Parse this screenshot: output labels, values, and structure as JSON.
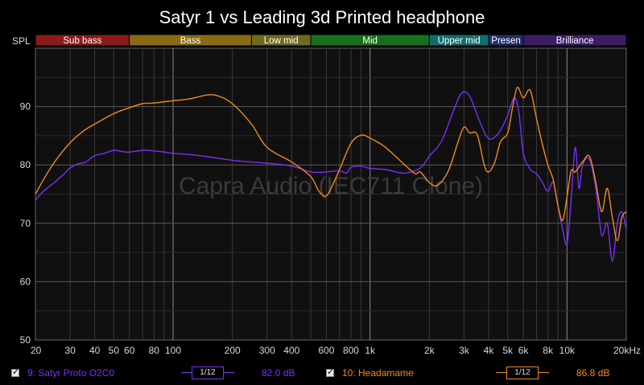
{
  "title": "Satyr 1 vs Leading 3d Printed headphone",
  "watermark": "Capra Audio (IEC711 Clone)",
  "ylabel": "SPL",
  "chart_data": {
    "type": "line",
    "title": "Satyr 1 vs Leading 3d Printed headphone",
    "ylabel": "SPL",
    "xscale": "log",
    "xlim": [
      20,
      20000
    ],
    "ylim": [
      50,
      100
    ],
    "x_ticks": [
      {
        "v": 20,
        "t": "20"
      },
      {
        "v": 30,
        "t": "30"
      },
      {
        "v": 40,
        "t": "40"
      },
      {
        "v": 50,
        "t": "50"
      },
      {
        "v": 60,
        "t": "60"
      },
      {
        "v": 80,
        "t": "80"
      },
      {
        "v": 100,
        "t": "100"
      },
      {
        "v": 200,
        "t": "200"
      },
      {
        "v": 300,
        "t": "300"
      },
      {
        "v": 400,
        "t": "400"
      },
      {
        "v": 600,
        "t": "600"
      },
      {
        "v": 800,
        "t": "800"
      },
      {
        "v": 1000,
        "t": "1k"
      },
      {
        "v": 2000,
        "t": "2k"
      },
      {
        "v": 3000,
        "t": "3k"
      },
      {
        "v": 4000,
        "t": "4k"
      },
      {
        "v": 5000,
        "t": "5k"
      },
      {
        "v": 6000,
        "t": "6k"
      },
      {
        "v": 8000,
        "t": "8k"
      },
      {
        "v": 10000,
        "t": "10k"
      },
      {
        "v": 20000,
        "t": "20kHz"
      }
    ],
    "y_ticks": [
      50,
      60,
      70,
      80,
      90
    ],
    "grid": true,
    "bands": [
      {
        "name": "Sub bass",
        "from": 20,
        "to": 60,
        "color": "#8b1a1a"
      },
      {
        "name": "Bass",
        "from": 60,
        "to": 250,
        "color": "#8b6a14"
      },
      {
        "name": "Low mid",
        "from": 250,
        "to": 500,
        "color": "#6f6a1e"
      },
      {
        "name": "Mid",
        "from": 500,
        "to": 2000,
        "color": "#17701e"
      },
      {
        "name": "Upper mid",
        "from": 2000,
        "to": 4000,
        "color": "#136d6d"
      },
      {
        "name": "Presen",
        "from": 4000,
        "to": 6000,
        "color": "#20306a"
      },
      {
        "name": "Brilliance",
        "from": 6000,
        "to": 20000,
        "color": "#3d1e66"
      }
    ],
    "series": [
      {
        "name": "9: Satyr Proto O2C0",
        "color": "#7b2ff7",
        "x": [
          20,
          22,
          25,
          28,
          30,
          33,
          36,
          40,
          45,
          50,
          55,
          60,
          70,
          80,
          90,
          100,
          120,
          150,
          200,
          250,
          300,
          400,
          500,
          600,
          700,
          760,
          800,
          900,
          1000,
          1200,
          1500,
          1800,
          2000,
          2300,
          2600,
          2900,
          3200,
          3600,
          4000,
          4500,
          5000,
          5400,
          5700,
          6000,
          6500,
          7000,
          7500,
          8000,
          8500,
          9000,
          9500,
          10000,
          10500,
          11000,
          11500,
          12000,
          13000,
          14000,
          15000,
          16000,
          17000,
          18000,
          19000,
          20000
        ],
        "y": [
          74,
          75.5,
          77,
          78.5,
          79.5,
          80.2,
          80.5,
          81.6,
          82,
          82.5,
          82.3,
          82.2,
          82.5,
          82.4,
          82.2,
          82,
          81.8,
          81.4,
          80.8,
          80.5,
          80.3,
          79.8,
          78.8,
          78.8,
          79,
          78.6,
          79.6,
          79.8,
          79.4,
          79.2,
          78.6,
          79.5,
          81.5,
          84,
          88.5,
          92.2,
          91.8,
          87.5,
          84.5,
          85.5,
          88.5,
          91.5,
          89,
          82,
          79.3,
          78.5,
          77,
          75.5,
          77,
          73,
          69,
          66.5,
          74,
          83,
          76,
          80,
          81,
          76,
          68,
          70,
          63.5,
          70,
          72,
          69
        ]
      },
      {
        "name": "10: Headamame",
        "color": "#f08a1e",
        "x": [
          20,
          22,
          25,
          30,
          35,
          40,
          50,
          60,
          70,
          80,
          100,
          120,
          150,
          170,
          200,
          250,
          300,
          400,
          500,
          550,
          600,
          650,
          700,
          800,
          900,
          1000,
          1200,
          1500,
          1700,
          1800,
          2000,
          2200,
          2500,
          2800,
          3000,
          3200,
          3500,
          3800,
          4000,
          4300,
          4600,
          5000,
          5300,
          5600,
          6000,
          6500,
          7000,
          7500,
          8000,
          8500,
          9000,
          9500,
          10000,
          10500,
          11000,
          12000,
          13000,
          14000,
          15000,
          16000,
          17000,
          18000,
          19000,
          20000
        ],
        "y": [
          75,
          77.5,
          80.5,
          83.8,
          85.8,
          87,
          88.8,
          89.8,
          90.5,
          90.6,
          91,
          91.3,
          92,
          91.8,
          90.5,
          87,
          83,
          80.5,
          78,
          75.5,
          74.7,
          76.8,
          79.2,
          83.7,
          85.1,
          84.6,
          83,
          80,
          78.5,
          78.8,
          77,
          76.5,
          79,
          84,
          86.5,
          85.5,
          85.2,
          80,
          78.8,
          80.5,
          84,
          85.5,
          90,
          93.3,
          91.5,
          92.8,
          88,
          83.5,
          80,
          77.5,
          73,
          70.5,
          74.5,
          79,
          78.8,
          80.5,
          81.5,
          77,
          72,
          76,
          71,
          67,
          71,
          72
        ]
      }
    ]
  },
  "legend": [
    {
      "label": "9: Satyr Proto O2C0",
      "smoothing": "1/12",
      "value": "82.0 dB",
      "color": "#7b2ff7"
    },
    {
      "label": "10: Headamame",
      "smoothing": "1/12",
      "value": "86.8 dB",
      "color": "#f08a1e"
    }
  ]
}
